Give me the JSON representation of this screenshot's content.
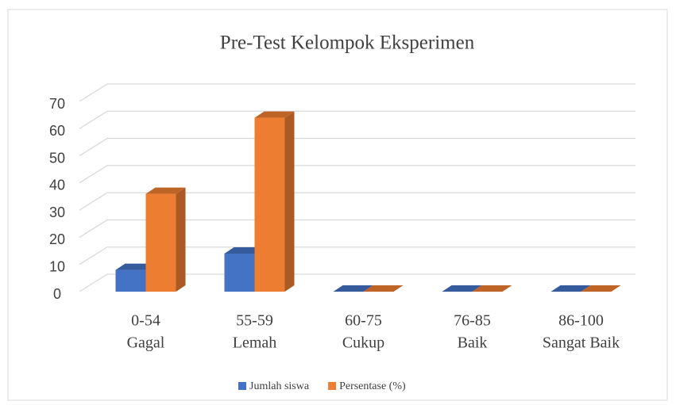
{
  "chart_data": {
    "type": "bar3d",
    "title": "Pre-Test Kelompok Eksperimen",
    "categories": [
      [
        "0-54",
        "Gagal"
      ],
      [
        "55-59",
        "Lemah"
      ],
      [
        "60-75",
        "Cukup"
      ],
      [
        "76-85",
        "Baik"
      ],
      [
        "86-100",
        "Sangat Baik"
      ]
    ],
    "series": [
      {
        "name": "Jumlah siswa",
        "color": "#4472c4",
        "values": [
          8,
          14,
          0,
          0,
          0
        ]
      },
      {
        "name": "Persentase (%)",
        "color": "#ed7d31",
        "values": [
          36,
          64,
          0,
          0,
          0
        ]
      }
    ],
    "ylim": [
      0,
      70
    ],
    "yticks": [
      0,
      10,
      20,
      30,
      40,
      50,
      60,
      70
    ],
    "grid": true,
    "legend": "bottom"
  }
}
